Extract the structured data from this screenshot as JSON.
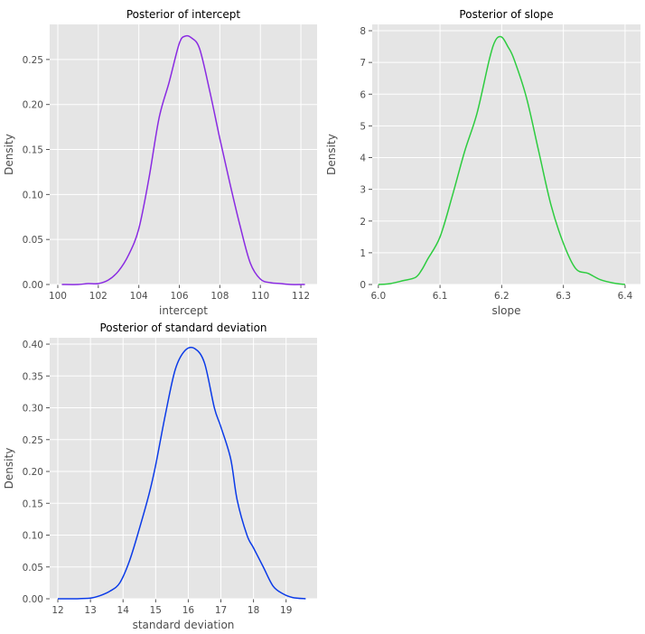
{
  "chart_data": [
    {
      "type": "line",
      "title": "Posterior of intercept",
      "xlabel": "intercept",
      "ylabel": "Density",
      "xlim": [
        99.6,
        112.8
      ],
      "ylim": [
        0,
        0.289
      ],
      "xticks": [
        100,
        102,
        104,
        106,
        108,
        110,
        112
      ],
      "yticks": [
        0.0,
        0.05,
        0.1,
        0.15,
        0.2,
        0.25
      ],
      "ytick_decimals": 2,
      "xtick_decimals": 0,
      "grid": true,
      "color": "#8a2be2",
      "x": [
        100.2,
        101.0,
        101.5,
        102.0,
        102.5,
        103.0,
        103.5,
        104.0,
        104.5,
        105.0,
        105.5,
        106.0,
        106.3,
        106.6,
        107.0,
        107.5,
        108.0,
        108.5,
        109.0,
        109.5,
        110.0,
        110.5,
        111.0,
        111.5,
        112.2
      ],
      "y": [
        0.0,
        0.0,
        0.001,
        0.001,
        0.005,
        0.015,
        0.033,
        0.062,
        0.118,
        0.185,
        0.225,
        0.268,
        0.276,
        0.274,
        0.262,
        0.215,
        0.162,
        0.112,
        0.065,
        0.024,
        0.006,
        0.002,
        0.001,
        0.0,
        0.0
      ]
    },
    {
      "type": "line",
      "title": "Posterior of slope",
      "xlabel": "slope",
      "ylabel": "Density",
      "xlim": [
        5.99,
        6.425
      ],
      "ylim": [
        0,
        8.2
      ],
      "xticks": [
        6.0,
        6.1,
        6.2,
        6.3,
        6.4
      ],
      "yticks": [
        0,
        1,
        2,
        3,
        4,
        5,
        6,
        7,
        8
      ],
      "ytick_decimals": 0,
      "xtick_decimals": 1,
      "grid": true,
      "color": "#2ecc40",
      "x": [
        6.0,
        6.02,
        6.04,
        6.06,
        6.07,
        6.08,
        6.1,
        6.12,
        6.14,
        6.16,
        6.18,
        6.19,
        6.2,
        6.21,
        6.22,
        6.24,
        6.26,
        6.28,
        6.3,
        6.32,
        6.34,
        6.36,
        6.38,
        6.4
      ],
      "y": [
        0.0,
        0.03,
        0.12,
        0.22,
        0.45,
        0.8,
        1.5,
        2.8,
        4.2,
        5.4,
        7.1,
        7.7,
        7.8,
        7.5,
        7.1,
        5.9,
        4.2,
        2.5,
        1.3,
        0.5,
        0.35,
        0.15,
        0.05,
        0.0
      ]
    },
    {
      "type": "line",
      "title": "Posterior of standard deviation",
      "xlabel": "standard deviation",
      "ylabel": "Density",
      "xlim": [
        11.75,
        19.95
      ],
      "ylim": [
        0,
        0.41
      ],
      "xticks": [
        12,
        13,
        14,
        15,
        16,
        17,
        18,
        19
      ],
      "yticks": [
        0.0,
        0.05,
        0.1,
        0.15,
        0.2,
        0.25,
        0.3,
        0.35,
        0.4
      ],
      "ytick_decimals": 2,
      "xtick_decimals": 0,
      "grid": true,
      "color": "#0b3be8",
      "x": [
        12.0,
        12.5,
        13.0,
        13.3,
        13.6,
        13.9,
        14.2,
        14.5,
        14.8,
        15.0,
        15.3,
        15.6,
        15.9,
        16.2,
        16.5,
        16.8,
        17.0,
        17.3,
        17.5,
        17.8,
        18.0,
        18.3,
        18.6,
        18.9,
        19.2,
        19.6
      ],
      "y": [
        0.0,
        0.0,
        0.001,
        0.005,
        0.012,
        0.025,
        0.06,
        0.11,
        0.165,
        0.21,
        0.29,
        0.36,
        0.39,
        0.393,
        0.37,
        0.3,
        0.27,
        0.22,
        0.155,
        0.1,
        0.08,
        0.05,
        0.02,
        0.008,
        0.002,
        0.0
      ]
    }
  ]
}
